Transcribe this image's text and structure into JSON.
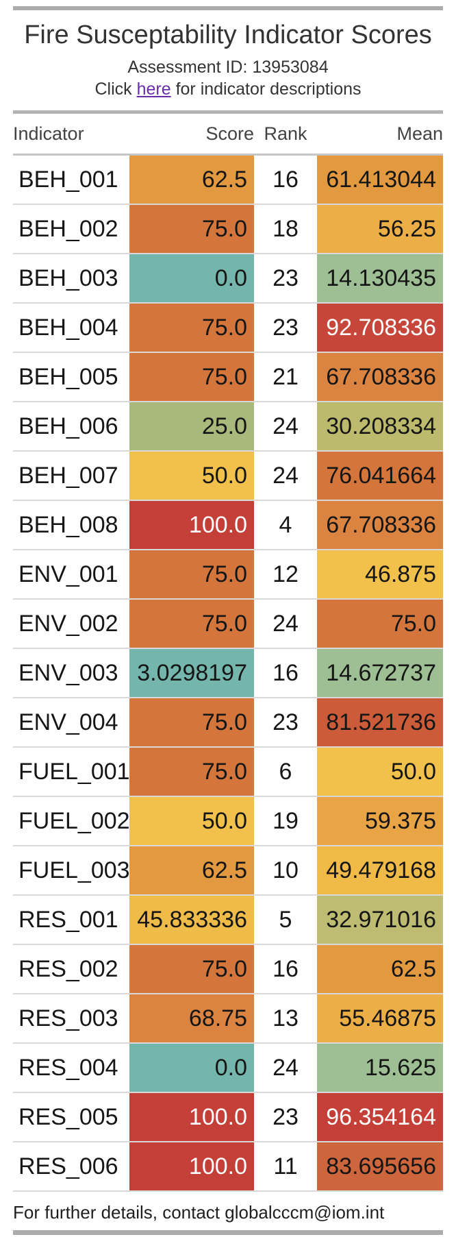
{
  "page": {
    "title": "Fire Susceptability Indicator Scores",
    "subtitle": "Assessment ID: 13953084",
    "link_line": {
      "prefix": "Click ",
      "link_text": "here",
      "suffix": " for indicator descriptions"
    },
    "footer": "For further details, contact globalcccm@iom.int"
  },
  "colors": {
    "frame_bar": "#ACACAC",
    "section_divider": "#B3B3B3",
    "header_divider": "#C6C6C6",
    "row_divider": "#D9D9D9",
    "link": "#6A2CA8",
    "dark_text": "#161616",
    "white_text": "#FFFFFF"
  },
  "table": {
    "columns": [
      "Indicator",
      "Score",
      "Rank",
      "Mean"
    ],
    "rows": [
      {
        "indicator": "BEH_001",
        "score": "62.5",
        "score_bg": "#E2993F",
        "score_white": false,
        "rank": "16",
        "mean": "61.413044",
        "mean_bg": "#E2993F",
        "mean_white": false
      },
      {
        "indicator": "BEH_002",
        "score": "75.0",
        "score_bg": "#D4753C",
        "score_white": false,
        "rank": "18",
        "mean": "56.25",
        "mean_bg": "#ECAE47",
        "mean_white": false
      },
      {
        "indicator": "BEH_003",
        "score": "0.0",
        "score_bg": "#74B6AC",
        "score_white": false,
        "rank": "23",
        "mean": "14.130435",
        "mean_bg": "#9EBF93",
        "mean_white": false
      },
      {
        "indicator": "BEH_004",
        "score": "75.0",
        "score_bg": "#D4753C",
        "score_white": false,
        "rank": "23",
        "mean": "92.708336",
        "mean_bg": "#C6463B",
        "mean_white": true
      },
      {
        "indicator": "BEH_005",
        "score": "75.0",
        "score_bg": "#D4753C",
        "score_white": false,
        "rank": "21",
        "mean": "67.708336",
        "mean_bg": "#DB8340",
        "mean_white": false
      },
      {
        "indicator": "BEH_006",
        "score": "25.0",
        "score_bg": "#A9B87B",
        "score_white": false,
        "rank": "24",
        "mean": "30.208334",
        "mean_bg": "#BCBA6C",
        "mean_white": false
      },
      {
        "indicator": "BEH_007",
        "score": "50.0",
        "score_bg": "#F2C14B",
        "score_white": false,
        "rank": "24",
        "mean": "76.041664",
        "mean_bg": "#D4753C",
        "mean_white": false
      },
      {
        "indicator": "BEH_008",
        "score": "100.0",
        "score_bg": "#C33F37",
        "score_white": true,
        "rank": "4",
        "mean": "67.708336",
        "mean_bg": "#DB8340",
        "mean_white": false
      },
      {
        "indicator": "ENV_001",
        "score": "75.0",
        "score_bg": "#D4753C",
        "score_white": false,
        "rank": "12",
        "mean": "46.875",
        "mean_bg": "#F2C14B",
        "mean_white": false
      },
      {
        "indicator": "ENV_002",
        "score": "75.0",
        "score_bg": "#D4753C",
        "score_white": false,
        "rank": "24",
        "mean": "75.0",
        "mean_bg": "#D4753C",
        "mean_white": false
      },
      {
        "indicator": "ENV_003",
        "score": "3.0298197",
        "score_bg": "#74B6AC",
        "score_white": false,
        "rank": "16",
        "mean": "14.672737",
        "mean_bg": "#9EBF93",
        "mean_white": false
      },
      {
        "indicator": "ENV_004",
        "score": "75.0",
        "score_bg": "#D4753C",
        "score_white": false,
        "rank": "23",
        "mean": "81.521736",
        "mean_bg": "#CC5C39",
        "mean_white": false
      },
      {
        "indicator": "FUEL_001",
        "score": "75.0",
        "score_bg": "#D4753C",
        "score_white": false,
        "rank": "6",
        "mean": "50.0",
        "mean_bg": "#F2C14B",
        "mean_white": false
      },
      {
        "indicator": "FUEL_002",
        "score": "50.0",
        "score_bg": "#F2C14B",
        "score_white": false,
        "rank": "19",
        "mean": "59.375",
        "mean_bg": "#E9A545",
        "mean_white": false
      },
      {
        "indicator": "FUEL_003",
        "score": "62.5",
        "score_bg": "#E2993F",
        "score_white": false,
        "rank": "10",
        "mean": "49.479168",
        "mean_bg": "#EFBA48",
        "mean_white": false
      },
      {
        "indicator": "RES_001",
        "score": "45.833336",
        "score_bg": "#F0BC49",
        "score_white": false,
        "rank": "5",
        "mean": "32.971016",
        "mean_bg": "#BEBC72",
        "mean_white": false
      },
      {
        "indicator": "RES_002",
        "score": "75.0",
        "score_bg": "#D4753C",
        "score_white": false,
        "rank": "16",
        "mean": "62.5",
        "mean_bg": "#E2993F",
        "mean_white": false
      },
      {
        "indicator": "RES_003",
        "score": "68.75",
        "score_bg": "#DB8340",
        "score_white": false,
        "rank": "13",
        "mean": "55.46875",
        "mean_bg": "#ECAE47",
        "mean_white": false
      },
      {
        "indicator": "RES_004",
        "score": "0.0",
        "score_bg": "#74B6AC",
        "score_white": false,
        "rank": "24",
        "mean": "15.625",
        "mean_bg": "#9EBF93",
        "mean_white": false
      },
      {
        "indicator": "RES_005",
        "score": "100.0",
        "score_bg": "#C33F37",
        "score_white": true,
        "rank": "23",
        "mean": "96.354164",
        "mean_bg": "#C33F37",
        "mean_white": true
      },
      {
        "indicator": "RES_006",
        "score": "100.0",
        "score_bg": "#C33F37",
        "score_white": true,
        "rank": "11",
        "mean": "83.695656",
        "mean_bg": "#CE663D",
        "mean_white": false
      }
    ]
  }
}
